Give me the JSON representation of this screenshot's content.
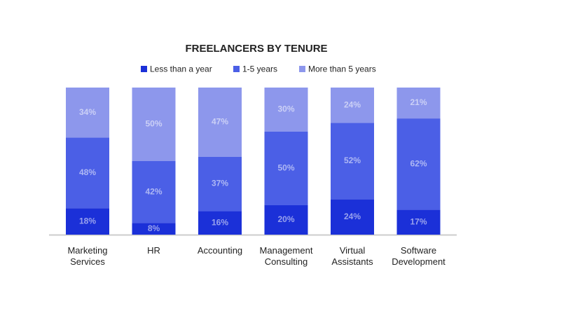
{
  "chart_data": {
    "type": "stacked_bar_100",
    "title": "FREELANCERS BY TENURE",
    "categories": [
      "Marketing Services",
      "HR",
      "Accounting",
      "Management Consulting",
      "Virtual Assistants",
      "Software Development"
    ],
    "series": [
      {
        "name": "Less than a year",
        "color": "#1b30d8",
        "values": [
          18,
          8,
          16,
          20,
          24,
          17
        ],
        "value_labels": [
          "18%",
          "8%",
          "16%",
          "20%",
          "24%",
          "17%"
        ]
      },
      {
        "name": "1-5 years",
        "color": "#4b5fe6",
        "values": [
          48,
          42,
          37,
          50,
          52,
          62
        ],
        "value_labels": [
          "48%",
          "42%",
          "37%",
          "50%",
          "52%",
          "62%"
        ]
      },
      {
        "name": "More than 5 years",
        "color": "#8d97ec",
        "values": [
          34,
          50,
          47,
          30,
          24,
          21
        ],
        "value_labels": [
          "34%",
          "50%",
          "47%",
          "30%",
          "24%",
          "21%"
        ]
      }
    ]
  }
}
